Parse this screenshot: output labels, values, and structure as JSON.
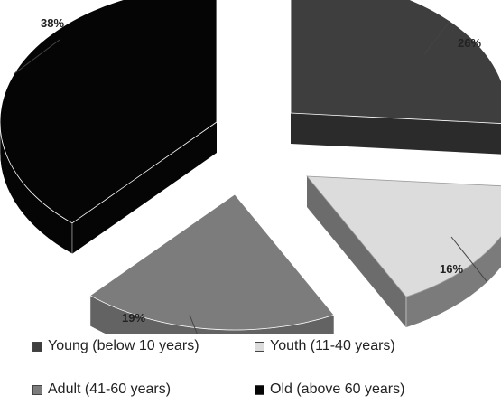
{
  "chart_data": {
    "type": "pie",
    "title": "",
    "categories": [
      "Young (below 10 years)",
      "Youth (11-40 years)",
      "Adult (41-60 years)",
      "Old (above 60 years)"
    ],
    "values": [
      26,
      16,
      19,
      38
    ],
    "labels": [
      "26%",
      "16%",
      "19%",
      "38%"
    ],
    "colors": [
      "#3e3e3e",
      "#dcdcdc",
      "#7c7c7c",
      "#050505"
    ],
    "style": "3d-exploded",
    "legend_position": "bottom"
  }
}
